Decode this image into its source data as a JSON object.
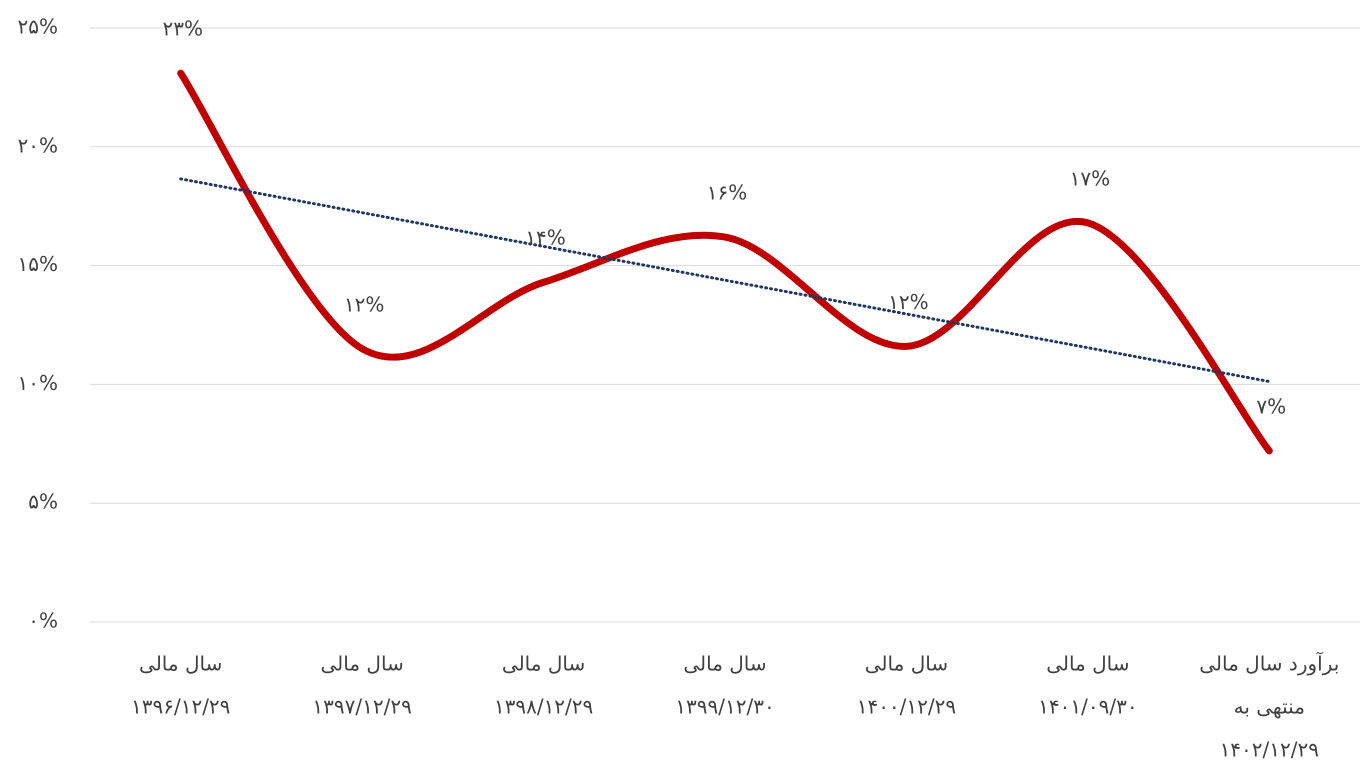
{
  "chart_data": {
    "type": "line",
    "categories": [
      [
        "سال مالی",
        "۱۳۹۶/۱۲/۲۹"
      ],
      [
        "سال مالی",
        "۱۳۹۷/۱۲/۲۹"
      ],
      [
        "سال مالی",
        "۱۳۹۸/۱۲/۲۹"
      ],
      [
        "سال مالی",
        "۱۳۹۹/۱۲/۳۰"
      ],
      [
        "سال مالی",
        "۱۴۰۰/۱۲/۲۹"
      ],
      [
        "سال مالی",
        "۱۴۰۱/۰۹/۳۰"
      ],
      [
        "برآورد سال مالی",
        "منتهی به",
        "۱۴۰۲/۱۲/۲۹"
      ]
    ],
    "series": [
      {
        "color": "#c00000",
        "values": [
          23.1,
          11.5,
          14.3,
          16.2,
          11.6,
          16.8,
          7.2
        ],
        "value_labels": [
          "۲۳%",
          "۱۲%",
          "۱۴%",
          "۱۶%",
          "۱۲%",
          "۱۷%",
          "۷%"
        ]
      }
    ],
    "smooth": true,
    "trendline": true,
    "trendline_color": "#1f3864",
    "ylim": [
      0,
      25
    ],
    "yticks": [
      {
        "value": 0,
        "label": "۰%"
      },
      {
        "value": 5,
        "label": "۵%"
      },
      {
        "value": 10,
        "label": "۱۰%"
      },
      {
        "value": 15,
        "label": "۱۵%"
      },
      {
        "value": 20,
        "label": "۲۰%"
      },
      {
        "value": 25,
        "label": "۲۵%"
      }
    ],
    "grid": true
  }
}
